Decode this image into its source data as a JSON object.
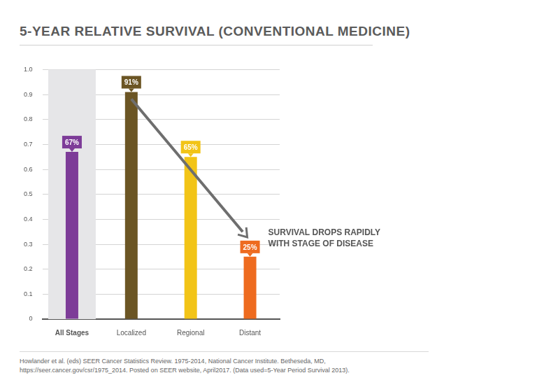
{
  "chart_data": {
    "type": "bar",
    "title": "5-YEAR RELATIVE SURVIVAL (CONVENTIONAL MEDICINE)",
    "categories": [
      "All Stages",
      "Localized",
      "Regional",
      "Distant"
    ],
    "values": [
      0.67,
      0.91,
      0.65,
      0.25
    ],
    "value_labels": [
      "67%",
      "91%",
      "65%",
      "25%"
    ],
    "colors": [
      "#7d3c98",
      "#6b5524",
      "#f2c417",
      "#ee6b1f"
    ],
    "ylim": [
      0,
      1
    ],
    "yticks": [
      0,
      0.1,
      0.2,
      0.3,
      0.4,
      0.5,
      0.6,
      0.7,
      0.8,
      0.9,
      {
        "value": 1,
        "label": "1.0"
      }
    ],
    "grid": true,
    "data_labels": true,
    "annotation": [
      "SURVIVAL DROPS RAPIDLY",
      "WITH STAGE OF DISEASE"
    ],
    "source": [
      "Howlander et al. (eds) SEER Cancer Statistics Review. 1975-2014, National Cancer Institute. Betheseda, MD,",
      "https://seer.cancer.gov/csr/1975_2014. Posted on SEER website, April2017. (Data used=5-Year Period Survival 2013)."
    ]
  }
}
